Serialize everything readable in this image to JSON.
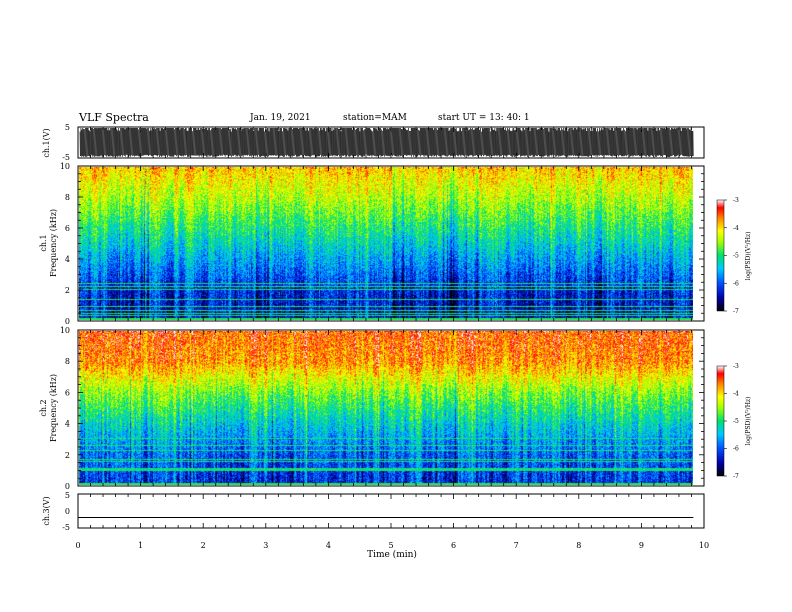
{
  "header": {
    "title": "VLF Spectra",
    "date": "Jan. 19, 2021",
    "station": "station=MAM",
    "start": "start  UT  =   13: 40: 1"
  },
  "chart_data": [
    {
      "type": "line",
      "panel": "ch1-waveform",
      "ylabel": "ch.1(V)",
      "ylim": [
        -5,
        5
      ],
      "yticks": [
        "5",
        "-5"
      ],
      "xlim": [
        0,
        10
      ],
      "x_extent_min": 9.83,
      "description_of_values": "dense oscillating waveform filling most of range"
    },
    {
      "type": "heatmap",
      "panel": "ch1-spectrogram",
      "ylabel_line1": "ch.1",
      "ylabel_line2": "Frequency (kHz)",
      "ylim": [
        0,
        10
      ],
      "yticks": [
        "0",
        "2",
        "4",
        "6",
        "8",
        "10"
      ],
      "xlim": [
        0,
        10
      ],
      "x_extent_min": 9.83,
      "colorbar": {
        "label": "log(PSD)(V²/Hz)",
        "range": [
          -7,
          -3
        ],
        "ticks": [
          "-3",
          "-4",
          "-5",
          "-6",
          "-7"
        ]
      },
      "level_profile": {
        "freq_khz": [
          0,
          2,
          4,
          6,
          8,
          10
        ],
        "log_psd": [
          -6.4,
          -6.2,
          -5.6,
          -5.0,
          -4.4,
          -3.9
        ]
      }
    },
    {
      "type": "heatmap",
      "panel": "ch2-spectrogram",
      "ylabel_line1": "ch.2",
      "ylabel_line2": "Frequency (kHz)",
      "ylim": [
        0,
        10
      ],
      "yticks": [
        "0",
        "2",
        "4",
        "6",
        "8",
        "10"
      ],
      "xlim": [
        0,
        10
      ],
      "x_extent_min": 9.83,
      "colorbar": {
        "label": "log(PSD)(V²/Hz)",
        "range": [
          -7,
          -3
        ],
        "ticks": [
          "-3",
          "-4",
          "-5",
          "-6",
          "-7"
        ]
      },
      "level_profile": {
        "freq_khz": [
          0,
          2,
          4,
          6,
          8,
          10
        ],
        "log_psd": [
          -6.2,
          -5.9,
          -5.3,
          -4.6,
          -3.7,
          -3.5
        ]
      }
    },
    {
      "type": "line",
      "panel": "ch3-waveform",
      "ylabel": "ch.3(V)",
      "ylim": [
        -5,
        5
      ],
      "yticks": [
        "5",
        "0",
        "-5"
      ],
      "xlim": [
        0,
        10
      ],
      "xlabel": "Time (min)",
      "xticks": [
        "0",
        "1",
        "2",
        "3",
        "4",
        "5",
        "6",
        "7",
        "8",
        "9",
        "10"
      ],
      "x": [
        0,
        9.83
      ],
      "y": [
        -1.9,
        -1.9
      ]
    }
  ]
}
